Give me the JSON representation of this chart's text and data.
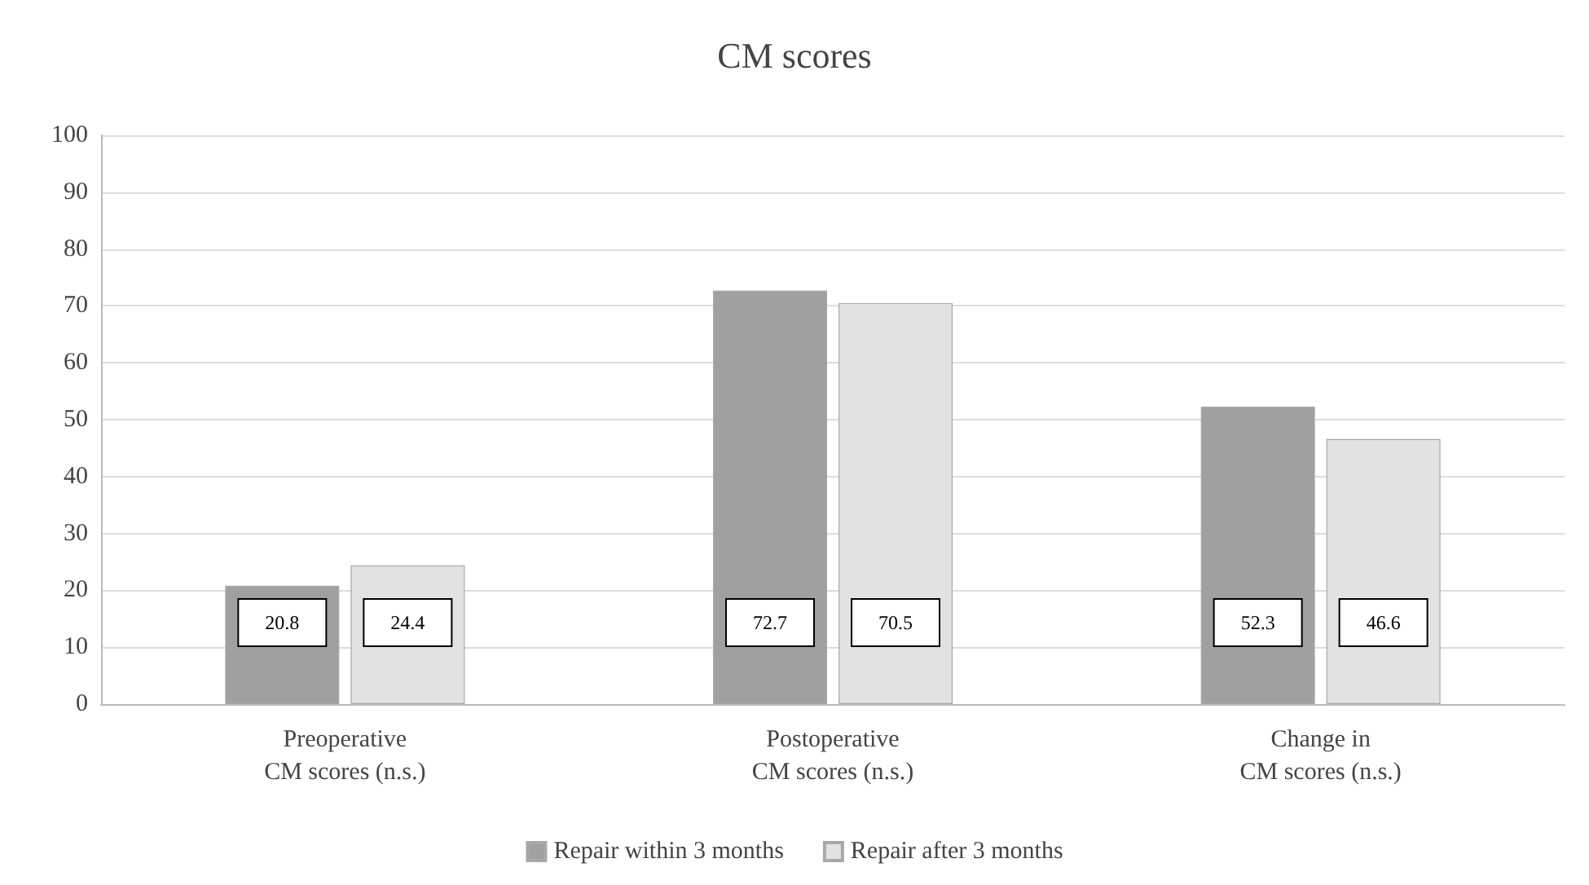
{
  "chart_data": {
    "type": "bar",
    "title": "CM scores",
    "categories": [
      "Preoperative\nCM scores (n.s.)",
      "Postoperative\nCM scores (n.s.)",
      "Change in\nCM scores (n.s.)"
    ],
    "series": [
      {
        "name": "Repair within 3 months",
        "color": "#a0a0a0",
        "values": [
          20.8,
          72.7,
          52.3
        ]
      },
      {
        "name": "Repair after 3 months",
        "color": "#e2e2e2",
        "values": [
          24.4,
          70.5,
          46.6
        ]
      }
    ],
    "ylim": [
      0,
      100
    ],
    "yticks": [
      0,
      10,
      20,
      30,
      40,
      50,
      60,
      70,
      80,
      90,
      100
    ],
    "grid": "y",
    "legend": "bottom",
    "data_labels": true
  }
}
